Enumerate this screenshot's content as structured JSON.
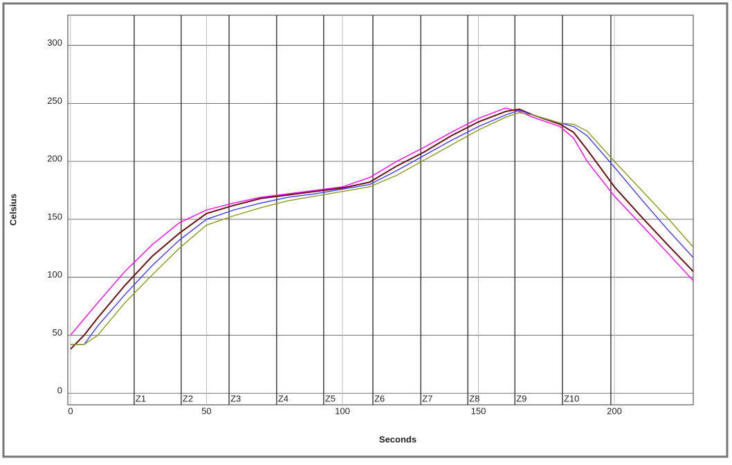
{
  "chart_data": {
    "type": "line",
    "xlabel": "Seconds",
    "ylabel": "Celsius",
    "x": [
      0,
      5,
      10,
      20,
      30,
      40,
      50,
      60,
      70,
      80,
      90,
      100,
      110,
      120,
      130,
      140,
      150,
      160,
      165,
      170,
      180,
      185,
      190,
      200,
      210,
      220,
      229
    ],
    "series": [
      {
        "color": "#ff00ff",
        "values": [
          50,
          64,
          78,
          105,
          128,
          147,
          158,
          164,
          169,
          172,
          175,
          178,
          186,
          200,
          212,
          225,
          237,
          246,
          243,
          238,
          230,
          220,
          200,
          170,
          145,
          120,
          97
        ]
      },
      {
        "color": "#6b0f0f",
        "values": [
          38,
          50,
          65,
          93,
          118,
          138,
          155,
          162,
          168,
          171,
          174,
          177,
          182,
          196,
          208,
          222,
          234,
          243,
          245,
          240,
          232,
          225,
          210,
          178,
          152,
          127,
          105
        ]
      },
      {
        "color": "#3b3bff",
        "values": [
          42,
          42,
          58,
          85,
          110,
          132,
          150,
          158,
          164,
          169,
          172,
          176,
          180,
          192,
          205,
          218,
          230,
          240,
          244,
          240,
          233,
          230,
          222,
          195,
          167,
          140,
          117
        ]
      },
      {
        "color": "#8a9a1a",
        "values": [
          42,
          42,
          50,
          78,
          102,
          125,
          145,
          153,
          160,
          166,
          170,
          174,
          178,
          188,
          201,
          214,
          227,
          238,
          242,
          240,
          233,
          232,
          226,
          200,
          175,
          150,
          126
        ]
      }
    ],
    "zones": {
      "x": [
        23.4,
        40.7,
        58.3,
        75.8,
        93.1,
        111.2,
        128.8,
        146.1,
        163.4,
        180.9,
        198.7
      ],
      "labels": [
        "Z1",
        "Z2",
        "Z3",
        "Z4",
        "Z5",
        "Z6",
        "Z7",
        "Z8",
        "Z9",
        "Z10",
        null
      ]
    },
    "xlim": [
      -1,
      229
    ],
    "ylim": [
      -10,
      326
    ],
    "xticks": [
      0,
      50,
      100,
      150,
      200
    ],
    "yticks": [
      0,
      50,
      100,
      150,
      200,
      250,
      300
    ],
    "grid": true
  }
}
